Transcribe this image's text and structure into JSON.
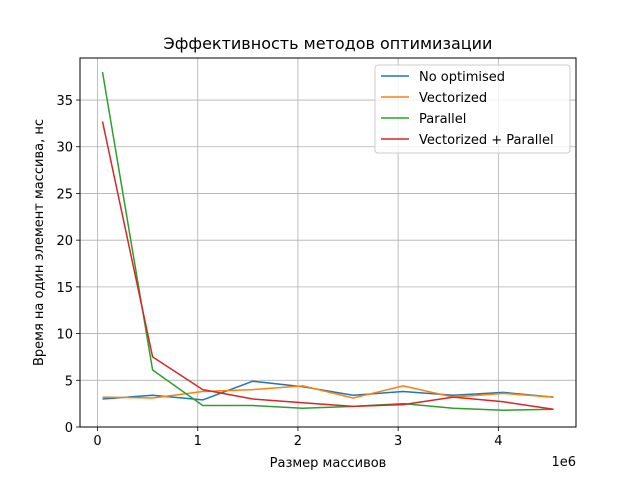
{
  "chart_data": {
    "type": "line",
    "title": "Эффективность методов оптимизации",
    "xlabel": "Размер массивов",
    "ylabel": "Время на один элемент массива, нс",
    "x_offset_label": "1e6",
    "xlim": [
      -0.175,
      4.775
    ],
    "ylim": [
      0,
      39.5
    ],
    "x_ticks": [
      0,
      1,
      2,
      3,
      4
    ],
    "x_tick_labels": [
      "0",
      "1",
      "2",
      "3",
      "4"
    ],
    "y_ticks": [
      0,
      5,
      10,
      15,
      20,
      25,
      30,
      35
    ],
    "y_tick_labels": [
      "0",
      "5",
      "10",
      "15",
      "20",
      "25",
      "30",
      "35"
    ],
    "grid": true,
    "legend_position": "top-right",
    "x": [
      0.05,
      0.55,
      1.05,
      1.55,
      2.05,
      2.55,
      3.05,
      3.55,
      4.05,
      4.55
    ],
    "series": [
      {
        "name": "No optimised",
        "color": "#1f77b4",
        "values": [
          3.0,
          3.4,
          2.9,
          4.9,
          4.3,
          3.4,
          3.8,
          3.4,
          3.7,
          3.2
        ]
      },
      {
        "name": "Vectorized",
        "color": "#ff7f0e",
        "values": [
          3.2,
          3.1,
          3.8,
          4.0,
          4.4,
          3.1,
          4.4,
          3.2,
          3.6,
          3.2
        ]
      },
      {
        "name": "Parallel",
        "color": "#2ca02c",
        "values": [
          38.0,
          6.1,
          2.3,
          2.3,
          2.0,
          2.2,
          2.5,
          2.0,
          1.8,
          1.9
        ]
      },
      {
        "name": "Vectorized + Parallel",
        "color": "#d62728",
        "values": [
          32.7,
          7.5,
          4.0,
          3.0,
          2.6,
          2.2,
          2.4,
          3.2,
          2.7,
          1.9
        ]
      }
    ]
  }
}
